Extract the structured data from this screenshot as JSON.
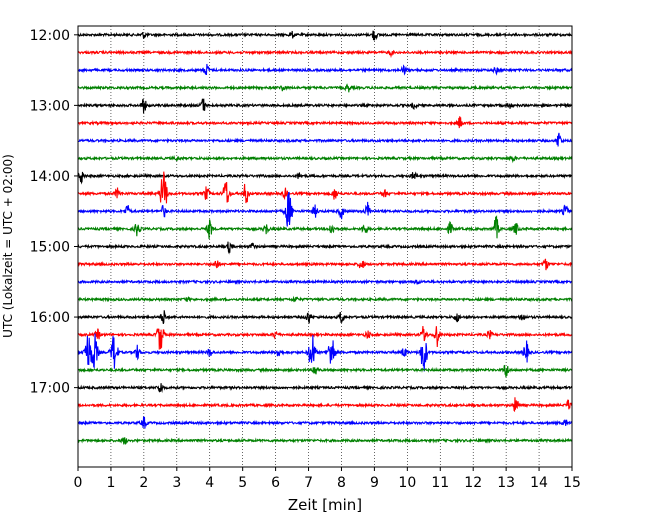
{
  "chart_data": {
    "type": "line",
    "title": "",
    "xlabel": "Zeit  [min]",
    "ylabel": "UTC (Lokalzeit = UTC + 02:00)",
    "xlim": [
      0,
      15
    ],
    "ylim": [
      "11:52:30",
      "18:07:30"
    ],
    "x_ticks": [
      "0",
      "1",
      "2",
      "3",
      "4",
      "5",
      "6",
      "7",
      "8",
      "9",
      "10",
      "11",
      "12",
      "13",
      "14",
      "15"
    ],
    "y_ticks": [
      "12:00",
      "13:00",
      "14:00",
      "15:00",
      "16:00",
      "17:00"
    ],
    "grid": {
      "x": true,
      "y": false,
      "style": "dotted"
    },
    "color_cycle": [
      "#000000",
      "#ff0000",
      "#0000ff",
      "#008000"
    ],
    "series": [
      {
        "start": "12:00",
        "events": [
          [
            9.0,
            6
          ],
          [
            2.0,
            3
          ],
          [
            6.5,
            3
          ]
        ]
      },
      {
        "start": "12:15",
        "events": [
          [
            9.5,
            2.5
          ]
        ]
      },
      {
        "start": "12:30",
        "events": [
          [
            3.9,
            6
          ],
          [
            9.9,
            4
          ],
          [
            12.7,
            3
          ]
        ]
      },
      {
        "start": "12:45",
        "events": [
          [
            8.2,
            4
          ],
          [
            6.2,
            3
          ]
        ]
      },
      {
        "start": "13:00",
        "events": [
          [
            2.0,
            7
          ],
          [
            3.8,
            7
          ],
          [
            13.1,
            3
          ],
          [
            10.2,
            3
          ]
        ]
      },
      {
        "start": "13:15",
        "events": [
          [
            11.6,
            6
          ]
        ]
      },
      {
        "start": "13:30",
        "events": [
          [
            14.6,
            9
          ]
        ]
      },
      {
        "start": "13:45",
        "events": [
          [
            13.2,
            2.5
          ],
          [
            3.0,
            2
          ]
        ]
      },
      {
        "start": "14:00",
        "events": [
          [
            0.1,
            7
          ],
          [
            10.2,
            4
          ],
          [
            6.7,
            3
          ]
        ]
      },
      {
        "start": "14:15",
        "events": [
          [
            2.6,
            24
          ],
          [
            4.5,
            14
          ],
          [
            5.1,
            12
          ],
          [
            3.9,
            7
          ],
          [
            1.2,
            5
          ],
          [
            6.3,
            5
          ],
          [
            7.8,
            6
          ],
          [
            9.3,
            4
          ]
        ]
      },
      {
        "start": "14:30",
        "events": [
          [
            6.4,
            20
          ],
          [
            8.8,
            9
          ],
          [
            8.0,
            7
          ],
          [
            1.5,
            6
          ],
          [
            2.6,
            6
          ],
          [
            7.2,
            6
          ],
          [
            14.8,
            6
          ]
        ]
      },
      {
        "start": "14:45",
        "events": [
          [
            4.0,
            10
          ],
          [
            12.7,
            12
          ],
          [
            1.8,
            8
          ],
          [
            5.7,
            6
          ],
          [
            7.7,
            6
          ],
          [
            8.7,
            6
          ],
          [
            11.3,
            6
          ],
          [
            13.3,
            6
          ]
        ]
      },
      {
        "start": "15:00",
        "events": [
          [
            4.6,
            6
          ],
          [
            5.3,
            3
          ]
        ]
      },
      {
        "start": "15:15",
        "events": [
          [
            8.6,
            6
          ],
          [
            4.2,
            5
          ],
          [
            14.2,
            6
          ]
        ]
      },
      {
        "start": "15:30",
        "events": [
          [
            10.3,
            2.5
          ]
        ]
      },
      {
        "start": "15:45",
        "events": [
          [
            6.6,
            3
          ],
          [
            3.3,
            2
          ]
        ]
      },
      {
        "start": "16:00",
        "events": [
          [
            2.6,
            7
          ],
          [
            7.0,
            6
          ],
          [
            8.0,
            6
          ],
          [
            11.5,
            5
          ],
          [
            13.5,
            4
          ]
        ]
      },
      {
        "start": "16:15",
        "events": [
          [
            2.5,
            16
          ],
          [
            10.5,
            10
          ],
          [
            10.9,
            12
          ],
          [
            0.6,
            5
          ],
          [
            6.0,
            4
          ],
          [
            8.8,
            4
          ],
          [
            12.5,
            4
          ]
        ]
      },
      {
        "start": "16:30",
        "events": [
          [
            0.3,
            19
          ],
          [
            0.5,
            19
          ],
          [
            1.1,
            19
          ],
          [
            1.8,
            7
          ],
          [
            6.1,
            6
          ],
          [
            7.1,
            20
          ],
          [
            7.7,
            18
          ],
          [
            10.5,
            20
          ],
          [
            13.6,
            12
          ],
          [
            4.0,
            4
          ],
          [
            9.9,
            5
          ]
        ]
      },
      {
        "start": "16:45",
        "events": [
          [
            7.2,
            6
          ],
          [
            13.0,
            8
          ]
        ]
      },
      {
        "start": "17:00",
        "events": [
          [
            2.5,
            6
          ]
        ]
      },
      {
        "start": "17:15",
        "events": [
          [
            13.3,
            9
          ],
          [
            14.9,
            5
          ]
        ]
      },
      {
        "start": "17:30",
        "events": [
          [
            2.0,
            6
          ],
          [
            14.8,
            3
          ]
        ]
      },
      {
        "start": "17:45",
        "events": [
          [
            1.4,
            4
          ]
        ]
      }
    ]
  }
}
